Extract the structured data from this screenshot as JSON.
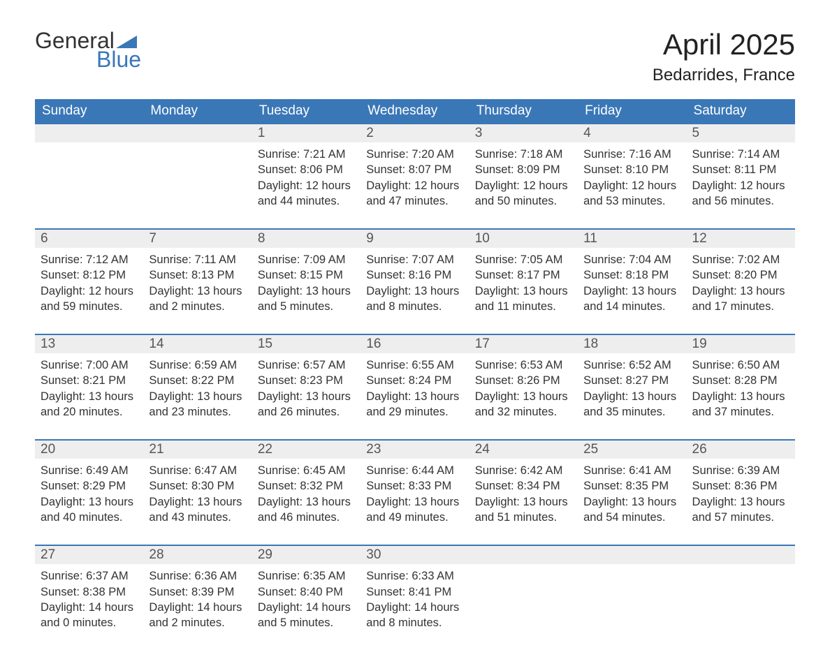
{
  "brand": {
    "word1": "General",
    "word2": "Blue",
    "text_color": "#333333",
    "accent_color": "#3a77b7"
  },
  "title": "April 2025",
  "location": "Bedarrides, France",
  "colors": {
    "header_bg": "#3a77b7",
    "header_text": "#ffffff",
    "daynum_bg": "#eeeeee",
    "daynum_text": "#555555",
    "body_text": "#333333",
    "week_sep": "#3a77b7",
    "page_bg": "#ffffff"
  },
  "typography": {
    "month_title_fontsize": 42,
    "location_fontsize": 24,
    "day_header_fontsize": 19,
    "daynum_fontsize": 19,
    "cell_fontsize": 16.5,
    "font_family": "Arial"
  },
  "day_names": [
    "Sunday",
    "Monday",
    "Tuesday",
    "Wednesday",
    "Thursday",
    "Friday",
    "Saturday"
  ],
  "weeks": [
    [
      null,
      null,
      {
        "n": "1",
        "sr": "7:21 AM",
        "ss": "8:06 PM",
        "dl": "12 hours and 44 minutes."
      },
      {
        "n": "2",
        "sr": "7:20 AM",
        "ss": "8:07 PM",
        "dl": "12 hours and 47 minutes."
      },
      {
        "n": "3",
        "sr": "7:18 AM",
        "ss": "8:09 PM",
        "dl": "12 hours and 50 minutes."
      },
      {
        "n": "4",
        "sr": "7:16 AM",
        "ss": "8:10 PM",
        "dl": "12 hours and 53 minutes."
      },
      {
        "n": "5",
        "sr": "7:14 AM",
        "ss": "8:11 PM",
        "dl": "12 hours and 56 minutes."
      }
    ],
    [
      {
        "n": "6",
        "sr": "7:12 AM",
        "ss": "8:12 PM",
        "dl": "12 hours and 59 minutes."
      },
      {
        "n": "7",
        "sr": "7:11 AM",
        "ss": "8:13 PM",
        "dl": "13 hours and 2 minutes."
      },
      {
        "n": "8",
        "sr": "7:09 AM",
        "ss": "8:15 PM",
        "dl": "13 hours and 5 minutes."
      },
      {
        "n": "9",
        "sr": "7:07 AM",
        "ss": "8:16 PM",
        "dl": "13 hours and 8 minutes."
      },
      {
        "n": "10",
        "sr": "7:05 AM",
        "ss": "8:17 PM",
        "dl": "13 hours and 11 minutes."
      },
      {
        "n": "11",
        "sr": "7:04 AM",
        "ss": "8:18 PM",
        "dl": "13 hours and 14 minutes."
      },
      {
        "n": "12",
        "sr": "7:02 AM",
        "ss": "8:20 PM",
        "dl": "13 hours and 17 minutes."
      }
    ],
    [
      {
        "n": "13",
        "sr": "7:00 AM",
        "ss": "8:21 PM",
        "dl": "13 hours and 20 minutes."
      },
      {
        "n": "14",
        "sr": "6:59 AM",
        "ss": "8:22 PM",
        "dl": "13 hours and 23 minutes."
      },
      {
        "n": "15",
        "sr": "6:57 AM",
        "ss": "8:23 PM",
        "dl": "13 hours and 26 minutes."
      },
      {
        "n": "16",
        "sr": "6:55 AM",
        "ss": "8:24 PM",
        "dl": "13 hours and 29 minutes."
      },
      {
        "n": "17",
        "sr": "6:53 AM",
        "ss": "8:26 PM",
        "dl": "13 hours and 32 minutes."
      },
      {
        "n": "18",
        "sr": "6:52 AM",
        "ss": "8:27 PM",
        "dl": "13 hours and 35 minutes."
      },
      {
        "n": "19",
        "sr": "6:50 AM",
        "ss": "8:28 PM",
        "dl": "13 hours and 37 minutes."
      }
    ],
    [
      {
        "n": "20",
        "sr": "6:49 AM",
        "ss": "8:29 PM",
        "dl": "13 hours and 40 minutes."
      },
      {
        "n": "21",
        "sr": "6:47 AM",
        "ss": "8:30 PM",
        "dl": "13 hours and 43 minutes."
      },
      {
        "n": "22",
        "sr": "6:45 AM",
        "ss": "8:32 PM",
        "dl": "13 hours and 46 minutes."
      },
      {
        "n": "23",
        "sr": "6:44 AM",
        "ss": "8:33 PM",
        "dl": "13 hours and 49 minutes."
      },
      {
        "n": "24",
        "sr": "6:42 AM",
        "ss": "8:34 PM",
        "dl": "13 hours and 51 minutes."
      },
      {
        "n": "25",
        "sr": "6:41 AM",
        "ss": "8:35 PM",
        "dl": "13 hours and 54 minutes."
      },
      {
        "n": "26",
        "sr": "6:39 AM",
        "ss": "8:36 PM",
        "dl": "13 hours and 57 minutes."
      }
    ],
    [
      {
        "n": "27",
        "sr": "6:37 AM",
        "ss": "8:38 PM",
        "dl": "14 hours and 0 minutes."
      },
      {
        "n": "28",
        "sr": "6:36 AM",
        "ss": "8:39 PM",
        "dl": "14 hours and 2 minutes."
      },
      {
        "n": "29",
        "sr": "6:35 AM",
        "ss": "8:40 PM",
        "dl": "14 hours and 5 minutes."
      },
      {
        "n": "30",
        "sr": "6:33 AM",
        "ss": "8:41 PM",
        "dl": "14 hours and 8 minutes."
      },
      null,
      null,
      null
    ]
  ],
  "labels": {
    "sunrise": "Sunrise: ",
    "sunset": "Sunset: ",
    "daylight": "Daylight: "
  }
}
